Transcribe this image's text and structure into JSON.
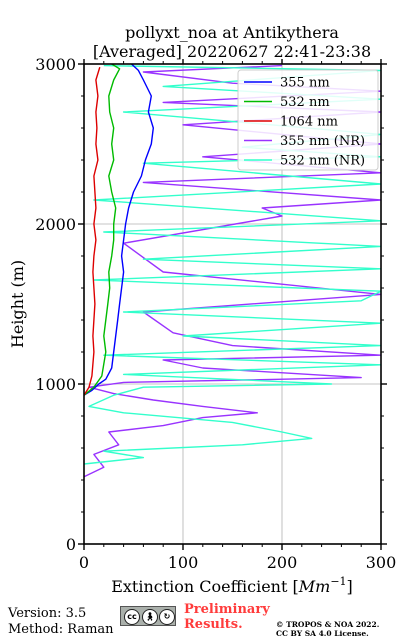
{
  "chart_data": {
    "type": "line",
    "title_line1": "pollyxt_noa at Antikythera",
    "title_line2": "[Averaged] 20220627 22:41-23:38",
    "xlabel": "Extinction Coefficient [",
    "xlabel_unit": "Mm",
    "xlabel_exp": "−1",
    "xlabel_close": "]",
    "ylabel": "Height (m)",
    "xlim": [
      0,
      300
    ],
    "ylim": [
      0,
      3000
    ],
    "x_ticks": [
      "0",
      "100",
      "200",
      "300"
    ],
    "y_ticks": [
      "0",
      "1000",
      "2000",
      "3000"
    ],
    "grid": true,
    "legend_position": "top-right",
    "series": [
      {
        "name": "355 nm",
        "color": "#0000ff",
        "points": [
          [
            0,
            930
          ],
          [
            8,
            960
          ],
          [
            15,
            1000
          ],
          [
            22,
            1030
          ],
          [
            28,
            1100
          ],
          [
            30,
            1200
          ],
          [
            32,
            1300
          ],
          [
            34,
            1400
          ],
          [
            36,
            1500
          ],
          [
            38,
            1600
          ],
          [
            40,
            1700
          ],
          [
            38,
            1800
          ],
          [
            40,
            1900
          ],
          [
            42,
            2000
          ],
          [
            45,
            2100
          ],
          [
            50,
            2200
          ],
          [
            58,
            2300
          ],
          [
            62,
            2400
          ],
          [
            68,
            2500
          ],
          [
            70,
            2600
          ],
          [
            65,
            2700
          ],
          [
            68,
            2800
          ],
          [
            60,
            2900
          ],
          [
            55,
            2960
          ],
          [
            48,
            3000
          ]
        ]
      },
      {
        "name": "532 nm",
        "color": "#00bb00",
        "points": [
          [
            0,
            930
          ],
          [
            10,
            980
          ],
          [
            18,
            1050
          ],
          [
            22,
            1200
          ],
          [
            20,
            1300
          ],
          [
            22,
            1400
          ],
          [
            24,
            1500
          ],
          [
            26,
            1600
          ],
          [
            25,
            1700
          ],
          [
            28,
            1800
          ],
          [
            30,
            1900
          ],
          [
            30,
            2000
          ],
          [
            32,
            2100
          ],
          [
            28,
            2200
          ],
          [
            25,
            2300
          ],
          [
            30,
            2400
          ],
          [
            28,
            2500
          ],
          [
            30,
            2600
          ],
          [
            26,
            2700
          ],
          [
            25,
            2800
          ],
          [
            30,
            2900
          ],
          [
            36,
            2970
          ],
          [
            28,
            3000
          ]
        ]
      },
      {
        "name": "1064 nm",
        "color": "#dd0000",
        "points": [
          [
            0,
            930
          ],
          [
            5,
            980
          ],
          [
            8,
            1050
          ],
          [
            10,
            1200
          ],
          [
            9,
            1300
          ],
          [
            10,
            1400
          ],
          [
            11,
            1500
          ],
          [
            10,
            1600
          ],
          [
            9,
            1700
          ],
          [
            10,
            1800
          ],
          [
            12,
            1900
          ],
          [
            10,
            2000
          ],
          [
            12,
            2100
          ],
          [
            11,
            2200
          ],
          [
            10,
            2300
          ],
          [
            14,
            2400
          ],
          [
            12,
            2500
          ],
          [
            13,
            2600
          ],
          [
            12,
            2700
          ],
          [
            14,
            2800
          ],
          [
            12,
            2900
          ],
          [
            16,
            2980
          ]
        ]
      },
      {
        "name": "355 nm (NR)",
        "color": "#9933ff",
        "points": [
          [
            0,
            420
          ],
          [
            20,
            480
          ],
          [
            10,
            560
          ],
          [
            35,
            620
          ],
          [
            25,
            700
          ],
          [
            80,
            740
          ],
          [
            120,
            790
          ],
          [
            175,
            820
          ],
          [
            120,
            860
          ],
          [
            70,
            900
          ],
          [
            30,
            940
          ],
          [
            5,
            980
          ],
          [
            40,
            1010
          ],
          [
            280,
            1040
          ],
          [
            120,
            1100
          ],
          [
            80,
            1150
          ],
          [
            300,
            1180
          ],
          [
            150,
            1240
          ],
          [
            90,
            1320
          ],
          [
            60,
            1450
          ],
          [
            300,
            1560
          ],
          [
            80,
            1700
          ],
          [
            40,
            1880
          ],
          [
            200,
            2050
          ],
          [
            180,
            2100
          ],
          [
            300,
            2150
          ],
          [
            60,
            2260
          ],
          [
            300,
            2320
          ],
          [
            120,
            2420
          ],
          [
            300,
            2500
          ],
          [
            100,
            2620
          ],
          [
            300,
            2700
          ],
          [
            80,
            2760
          ],
          [
            300,
            2830
          ],
          [
            150,
            2880
          ],
          [
            60,
            2950
          ],
          [
            200,
            2990
          ]
        ]
      },
      {
        "name": "532 nm (NR)",
        "color": "#33ffcc",
        "points": [
          [
            0,
            500
          ],
          [
            60,
            540
          ],
          [
            20,
            580
          ],
          [
            160,
            620
          ],
          [
            230,
            660
          ],
          [
            200,
            700
          ],
          [
            150,
            760
          ],
          [
            40,
            820
          ],
          [
            5,
            860
          ],
          [
            30,
            930
          ],
          [
            60,
            980
          ],
          [
            250,
            1000
          ],
          [
            40,
            1060
          ],
          [
            300,
            1120
          ],
          [
            20,
            1180
          ],
          [
            300,
            1240
          ],
          [
            100,
            1300
          ],
          [
            300,
            1380
          ],
          [
            40,
            1450
          ],
          [
            280,
            1520
          ],
          [
            300,
            1580
          ],
          [
            10,
            1650
          ],
          [
            300,
            1720
          ],
          [
            60,
            1780
          ],
          [
            300,
            1860
          ],
          [
            20,
            1950
          ],
          [
            300,
            2020
          ],
          [
            10,
            2150
          ],
          [
            300,
            2250
          ],
          [
            60,
            2380
          ],
          [
            300,
            2420
          ],
          [
            160,
            2480
          ],
          [
            300,
            2560
          ],
          [
            40,
            2700
          ],
          [
            300,
            2780
          ],
          [
            80,
            2860
          ],
          [
            300,
            2960
          ],
          [
            20,
            2990
          ]
        ]
      }
    ]
  },
  "footer": {
    "version": "Version: 3.5",
    "method": "Method: Raman",
    "preliminary_line1": "Preliminary",
    "preliminary_line2": "Results.",
    "copyright_line1": "© TROPOS & NOA 2022.",
    "copyright_line2": "CC BY SA 4.0 License.",
    "license_badge": {
      "cc": "cc",
      "by": "BY",
      "sa": "SA"
    }
  }
}
